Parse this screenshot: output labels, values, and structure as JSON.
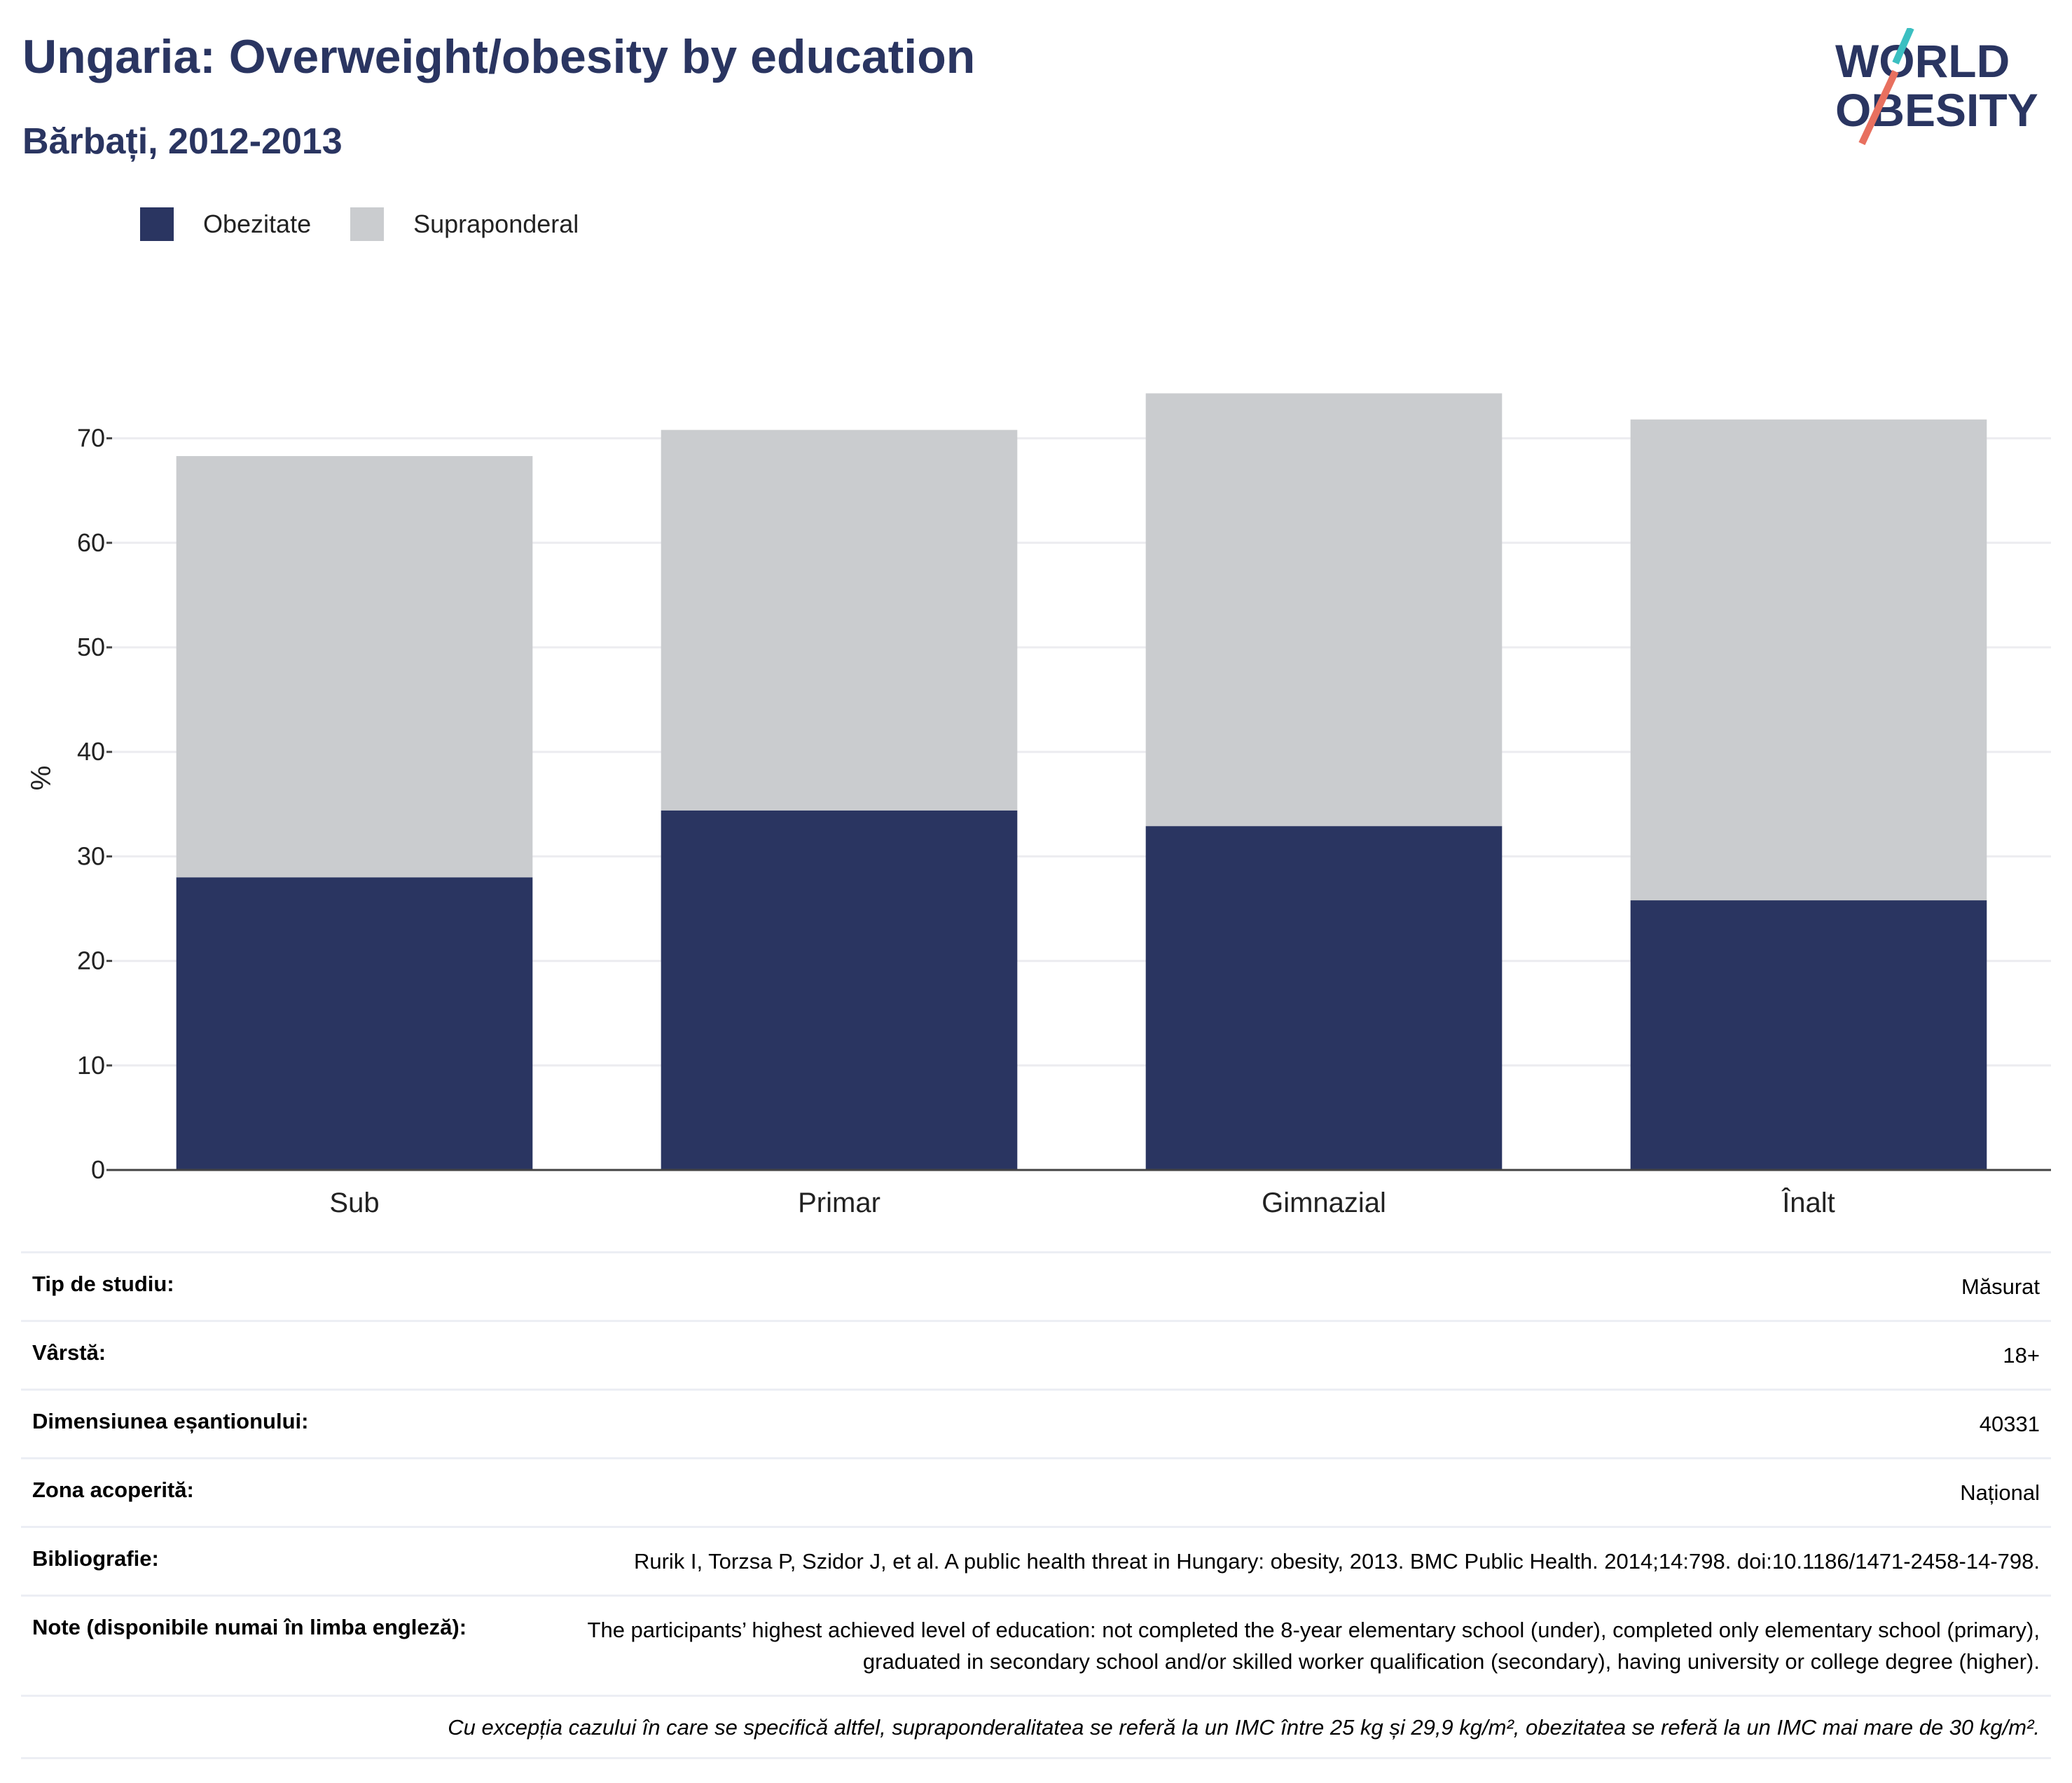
{
  "header": {
    "title": "Ungaria: Overweight/obesity by education",
    "subtitle": "Bărbați, 2012-2013"
  },
  "logo": {
    "line1": "WORLD",
    "line2": "OBESITY",
    "icon": "world-obesity-logo"
  },
  "colors": {
    "obesity": "#2a3561",
    "overweight": "#cacccf",
    "title": "#2a3561",
    "accent_teal": "#3bbfc1",
    "accent_coral": "#e8705f"
  },
  "chart_data": {
    "type": "bar",
    "stacked": true,
    "categories": [
      "Sub",
      "Primar",
      "Gimnazial",
      "Înalt"
    ],
    "series": [
      {
        "name": "Obezitate",
        "values": [
          28.0,
          34.4,
          32.9,
          25.8
        ]
      },
      {
        "name": "Supraponderal",
        "values": [
          40.3,
          36.4,
          41.4,
          46.0
        ]
      }
    ],
    "ylabel": "%",
    "ylim": [
      0,
      75
    ],
    "yticks": [
      0,
      10,
      20,
      30,
      40,
      50,
      60,
      70
    ],
    "grid": true,
    "legend": "top-left"
  },
  "meta": [
    {
      "key": "Tip de studiu:",
      "value": "Măsurat"
    },
    {
      "key": "Vârstă:",
      "value": "18+"
    },
    {
      "key": "Dimensiunea eșantionului:",
      "value": "40331"
    },
    {
      "key": "Zona acoperită:",
      "value": "Național"
    },
    {
      "key": "Bibliografie:",
      "value": "Rurik I, Torzsa P, Szidor J, et al. A public health threat in Hungary: obesity, 2013. BMC Public Health. 2014;14:798. doi:10.1186/1471-2458-14-798."
    },
    {
      "key": "Note (disponibile numai în limba engleză):",
      "value": "The participants’ highest achieved level of education: not completed the 8-year elementary school (under), completed only elementary school (primary), graduated in secondary school and/or skilled worker qualification (secondary), having university or college degree (higher)."
    }
  ],
  "footnote": "Cu excepția cazului în care se specifică altfel, supraponderalitatea se referă la un IMC între 25 kg și 29,9 kg/m², obezitatea se referă la un IMC mai mare de 30 kg/m²."
}
